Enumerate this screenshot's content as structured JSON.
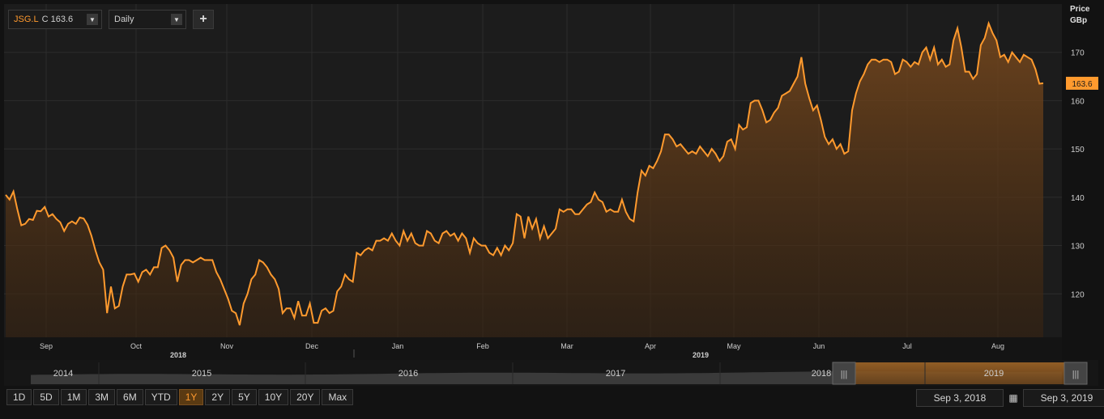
{
  "toolbar": {
    "ticker": "JSG.L",
    "close_label": "C 163.6",
    "interval": "Daily",
    "add_label": "+"
  },
  "range_buttons": [
    "1D",
    "5D",
    "1M",
    "3M",
    "6M",
    "YTD",
    "1Y",
    "2Y",
    "5Y",
    "10Y",
    "20Y",
    "Max"
  ],
  "active_range": "1Y",
  "date_from": "Sep 3, 2018",
  "date_to": "Sep 3, 2019",
  "colors": {
    "line": "#ff9a2e",
    "background": "#1c1c1c",
    "grid": "#2e2e2e",
    "accent": "#ff9a2e"
  },
  "chart_data": {
    "type": "area",
    "title": "",
    "ylabel": "Price GBp",
    "ylim": [
      111,
      180
    ],
    "yticks": [
      120,
      130,
      140,
      150,
      160,
      170
    ],
    "last_value_label": "163.6",
    "month_labels": [
      "Sep",
      "Oct",
      "Nov",
      "Dec",
      "Jan",
      "Feb",
      "Mar",
      "Apr",
      "May",
      "Jun",
      "Jul",
      "Aug"
    ],
    "year_labels": [
      "2018",
      "2019"
    ],
    "navigator_years": [
      "2014",
      "2015",
      "2016",
      "2017",
      "2018",
      "2019"
    ],
    "series": [
      {
        "values": [
          140.5,
          139.5,
          141.2,
          137.5,
          134.2,
          134.5,
          135.5,
          135.3,
          137.2,
          137.1,
          138.0,
          136.0,
          136.5,
          135.5,
          134.8,
          133.0,
          134.5,
          135.0,
          134.5,
          135.8,
          135.6,
          134.3,
          132.0,
          129.0,
          126.5,
          125.0,
          116.0,
          121.5,
          117.0,
          117.5,
          121.5,
          124.0,
          124.0,
          124.2,
          122.5,
          124.5,
          125.0,
          124.0,
          125.5,
          125.5,
          129.5,
          130.0,
          129.0,
          127.5,
          122.5,
          126.0,
          127.0,
          127.0,
          126.5,
          127.0,
          127.5,
          127.0,
          127.0,
          127.0,
          124.5,
          123.0,
          121.0,
          119.0,
          116.5,
          116.0,
          113.5,
          118.0,
          120.0,
          123.0,
          124.0,
          127.0,
          126.5,
          125.5,
          124.0,
          123.0,
          121.0,
          116.0,
          117.0,
          117.0,
          115.0,
          118.5,
          115.5,
          115.5,
          118.0,
          114.0,
          114.0,
          116.5,
          117.0,
          116.0,
          116.5,
          120.5,
          121.5,
          124.0,
          123.0,
          122.5,
          128.5,
          128.0,
          129.0,
          129.5,
          129.0,
          131.0,
          131.0,
          131.5,
          131.0,
          132.5,
          131.0,
          130.0,
          133.0,
          131.0,
          132.5,
          130.5,
          130.0,
          130.0,
          133.0,
          132.5,
          131.0,
          130.5,
          132.5,
          133.0,
          132.0,
          132.5,
          131.0,
          132.5,
          131.5,
          128.5,
          131.5,
          130.5,
          130.0,
          130.0,
          128.5,
          128.0,
          129.5,
          128.0,
          130.0,
          129.0,
          130.5,
          136.5,
          136.0,
          131.5,
          136.0,
          133.5,
          135.5,
          131.5,
          134.0,
          131.5,
          132.5,
          133.5,
          137.5,
          137.0,
          137.5,
          137.5,
          136.5,
          136.5,
          137.5,
          138.5,
          139.0,
          141.0,
          139.5,
          139.0,
          137.0,
          137.5,
          137.0,
          137.0,
          139.5,
          137.0,
          135.5,
          135.0,
          141.0,
          145.5,
          144.5,
          146.5,
          146.0,
          147.5,
          149.5,
          153.0,
          153.0,
          152.0,
          150.5,
          151.0,
          150.0,
          149.0,
          149.5,
          149.0,
          150.5,
          149.5,
          148.5,
          150.0,
          149.0,
          147.5,
          148.5,
          151.5,
          152.0,
          150.0,
          155.0,
          154.0,
          154.5,
          159.5,
          160.0,
          160.0,
          158.0,
          155.5,
          156.0,
          157.5,
          158.5,
          161.0,
          161.5,
          162.0,
          163.5,
          165.0,
          169.0,
          163.5,
          160.5,
          158.0,
          159.0,
          156.0,
          152.5,
          151.0,
          152.0,
          150.0,
          151.0,
          149.0,
          149.5,
          158.0,
          161.5,
          164.0,
          165.5,
          167.5,
          168.5,
          168.5,
          168.0,
          168.5,
          168.5,
          168.0,
          165.5,
          166.0,
          168.5,
          168.0,
          167.0,
          168.0,
          167.5,
          170.0,
          171.0,
          168.5,
          171.0,
          167.5,
          168.5,
          167.0,
          167.5,
          172.5,
          175.0,
          171.0,
          166.0,
          166.0,
          164.5,
          165.5,
          171.5,
          173.0,
          176.0,
          174.0,
          172.5,
          169.0,
          169.5,
          168.0,
          170.0,
          169.0,
          168.0,
          169.5,
          169.0,
          168.5,
          166.5,
          163.5,
          163.6
        ]
      }
    ]
  }
}
